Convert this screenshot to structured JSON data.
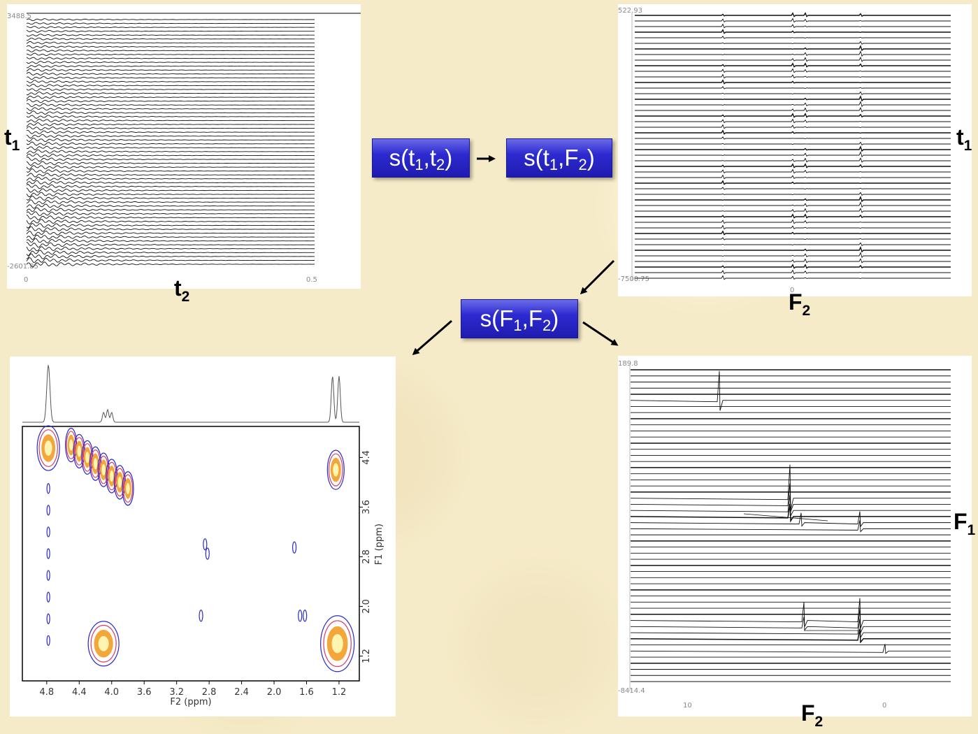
{
  "boxes": [
    {
      "id": "time",
      "p": "s(",
      "a": "t",
      "a_sub": "1",
      "b": "t",
      "b_sub": "2",
      "c": ")"
    },
    {
      "id": "mixed",
      "p": "s(",
      "a": "t",
      "a_sub": "1",
      "b": "F",
      "b_sub": "2",
      "c": ")"
    },
    {
      "id": "freq",
      "p": "s(",
      "a": "F",
      "a_sub": "1",
      "b": "F",
      "b_sub": "2",
      "c": ")"
    }
  ],
  "axis_labels": {
    "tl_y": {
      "main": "t",
      "sub": "1"
    },
    "tl_x": {
      "main": "t",
      "sub": "2"
    },
    "tr_y": {
      "main": "t",
      "sub": "1"
    },
    "tr_x": {
      "main": "F",
      "sub": "2"
    },
    "br_y": {
      "main": "F",
      "sub": "1"
    },
    "br_x": {
      "main": "F",
      "sub": "2"
    }
  },
  "panel_tl": {
    "top_value": "3488.5",
    "bottom_value": "-2601.85",
    "x_ticks": [
      "0",
      "0.5"
    ]
  },
  "panel_tr": {
    "top_value": "522.93",
    "bottom_value": "-7500.75",
    "x_ticks": [
      "0"
    ]
  },
  "panel_br": {
    "top_value": "189.8",
    "bottom_value": "-8414.4",
    "x_ticks": [
      "10",
      "0"
    ]
  },
  "panel_bl": {
    "x_ticks": [
      "4.8",
      "4.4",
      "4.0",
      "3.6",
      "3.2",
      "2.8",
      "2.4",
      "2.0",
      "1.6",
      "1.2"
    ],
    "y_ticks": [
      "4.4",
      "3.6",
      "2.8",
      "2.0",
      "1.2"
    ],
    "xlabel": "F2 (ppm)",
    "ylabel": "F1 (ppm)",
    "contour_colors": [
      "#2b2bc8",
      "#d83a6a",
      "#f3a73a",
      "#fff4b0"
    ]
  }
}
